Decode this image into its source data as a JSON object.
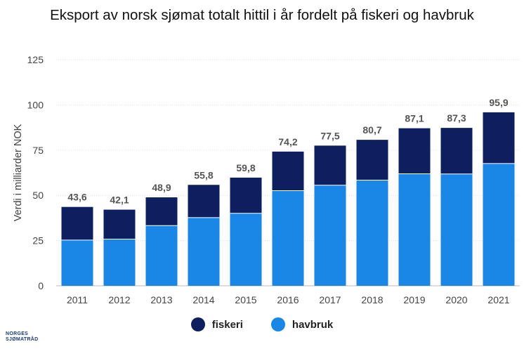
{
  "title": "Eksport av norsk sjømat totalt hittil i år fordelt på fiskeri og havbruk",
  "logo": {
    "line1": "NORGES",
    "line2": "SJØMATRÅD"
  },
  "chart_data": {
    "type": "bar",
    "stacked": true,
    "title": "Eksport av norsk sjømat totalt hittil i år fordelt på fiskeri og havbruk",
    "xlabel": "",
    "ylabel": "Verdi i milliarder NOK",
    "ylim": [
      0,
      125
    ],
    "yticks": [
      0,
      25,
      50,
      75,
      100,
      125
    ],
    "grid": true,
    "legend_position": "bottom",
    "categories": [
      "2011",
      "2012",
      "2013",
      "2014",
      "2015",
      "2016",
      "2017",
      "2018",
      "2019",
      "2020",
      "2021"
    ],
    "series": [
      {
        "name": "havbruk",
        "color": "#1a86e6",
        "values": [
          25.3,
          25.8,
          33.3,
          37.7,
          40.1,
          52.6,
          55.6,
          58.4,
          61.9,
          61.8,
          67.6
        ]
      },
      {
        "name": "fiskeri",
        "color": "#0d1f5e",
        "values": [
          18.3,
          16.3,
          15.6,
          18.1,
          19.7,
          21.6,
          21.9,
          22.3,
          25.2,
          25.5,
          28.3
        ]
      }
    ],
    "totals_labels": [
      "43,6",
      "42,1",
      "48,9",
      "55,8",
      "59,8",
      "74,2",
      "77,5",
      "80,7",
      "87,1",
      "87,3",
      "95,9"
    ],
    "legend_order": [
      "fiskeri",
      "havbruk"
    ]
  }
}
